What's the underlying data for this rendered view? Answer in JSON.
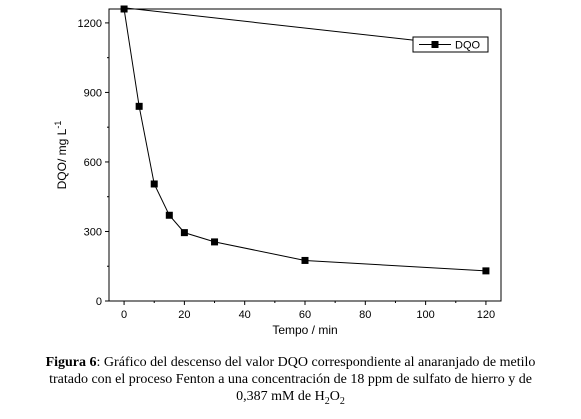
{
  "chart_data": {
    "type": "line",
    "xlabel": "Tempo / min",
    "ylabel_main": "DQO/ mg L",
    "ylabel_sup": "-1",
    "xlim": [
      -5,
      125
    ],
    "ylim": [
      0,
      1260
    ],
    "xticks": [
      0,
      20,
      40,
      60,
      80,
      100,
      120
    ],
    "yticks": [
      0,
      300,
      600,
      900,
      1200
    ],
    "legend_position": "top-right",
    "series": [
      {
        "name": "DQO",
        "marker": "square",
        "color": "#000000",
        "x": [
          0,
          5,
          10,
          15,
          20,
          30,
          60,
          120
        ],
        "y": [
          1260,
          840,
          505,
          370,
          295,
          255,
          175,
          130
        ]
      }
    ],
    "extra_line": {
      "description_of_series": "upper straight line without markers",
      "x": [
        0,
        100
      ],
      "y": [
        1265,
        1120
      ]
    }
  },
  "caption": {
    "label": "Figura 6",
    "line1_rest": ": Gráfico del descenso del valor DQO correspondiente al anaranjado de metilo",
    "line2": "tratado con el proceso Fenton a una concentración de 18 ppm de sulfato de hierro y de",
    "line3_main": "0,387 mM de H",
    "line3_sub1": "2",
    "line3_mid": "O",
    "line3_sub2": "2"
  }
}
